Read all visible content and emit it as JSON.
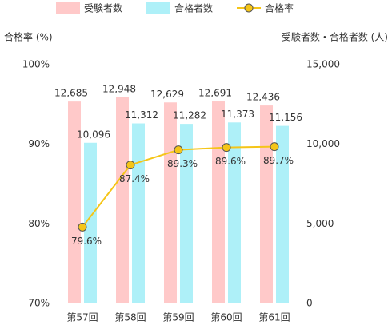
{
  "chart_data": {
    "type": "bar",
    "y_label": "合格率 (%)",
    "y2_label": "受験者数・合格者数 (人)",
    "categories": [
      "第57回",
      "第58回",
      "第59回",
      "第60回",
      "第61回"
    ],
    "series": [
      {
        "name": "受験者数",
        "type": "bar",
        "axis": "y2",
        "color": "#ffc9c9",
        "values": [
          12685,
          12948,
          12629,
          12691,
          12436
        ],
        "value_labels": [
          "12,685",
          "12,948",
          "12,629",
          "12,691",
          "12,436"
        ]
      },
      {
        "name": "合格者数",
        "type": "bar",
        "axis": "y2",
        "color": "#aef0f8",
        "values": [
          10096,
          11312,
          11282,
          11373,
          11156
        ],
        "value_labels": [
          "10,096",
          "11,312",
          "11,282",
          "11,373",
          "11,156"
        ]
      },
      {
        "name": "合格率",
        "type": "line",
        "axis": "y",
        "color": "#f5c518",
        "values": [
          79.6,
          87.4,
          89.3,
          89.6,
          89.7
        ],
        "value_labels": [
          "79.6%",
          "87.4%",
          "89.3%",
          "89.6%",
          "89.7%"
        ]
      }
    ],
    "ylim": [
      70,
      100
    ],
    "yticks": [
      {
        "value": 70,
        "label": "70%"
      },
      {
        "value": 80,
        "label": "80%"
      },
      {
        "value": 90,
        "label": "90%"
      },
      {
        "value": 100,
        "label": "100%"
      }
    ],
    "y2lim": [
      0,
      15000
    ],
    "y2ticks": [
      0,
      {
        "value": 5000,
        "label": "5,000"
      },
      {
        "value": 10000,
        "label": "10,000"
      },
      {
        "value": 15000,
        "label": "15,000"
      }
    ],
    "legend": "top"
  }
}
